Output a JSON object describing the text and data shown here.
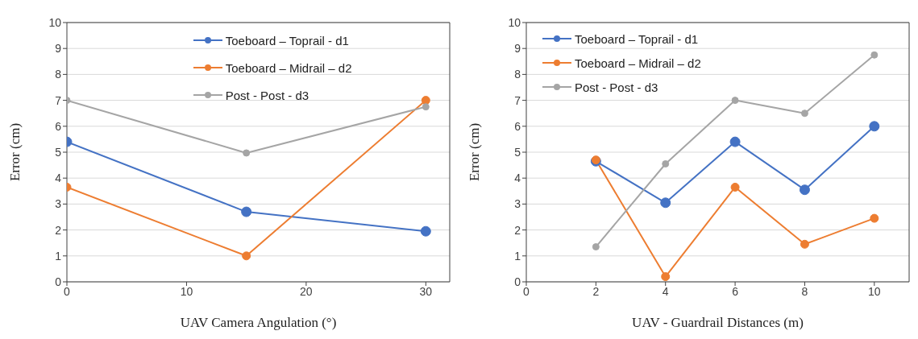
{
  "chart_data": [
    {
      "type": "line",
      "xlabel": "UAV Camera Angulation (°)",
      "ylabel": "Error (cm)",
      "x": [
        0,
        15,
        30
      ],
      "xlim": [
        0,
        32
      ],
      "xticks": [
        0,
        10,
        20,
        30
      ],
      "ylim": [
        0,
        10
      ],
      "yticks": [
        0,
        1,
        2,
        3,
        4,
        5,
        6,
        7,
        8,
        9,
        10
      ],
      "grid": "y",
      "legend": "top",
      "marker": "circle",
      "line_style": "solid",
      "series": [
        {
          "name": "Toeboard – Toprail - d1",
          "color": "#4472c4",
          "values": [
            5.4,
            2.7,
            1.95
          ]
        },
        {
          "name": "Toeboard – Midrail – d2",
          "color": "#ed7d31",
          "values": [
            3.65,
            1.0,
            7.0
          ]
        },
        {
          "name": "Post - Post - d3",
          "color": "#a5a5a5",
          "values": [
            7.0,
            4.97,
            6.75
          ]
        }
      ]
    },
    {
      "type": "line",
      "xlabel": "UAV - Guardrail Distances (m)",
      "ylabel": "Error (cm)",
      "x": [
        2,
        4,
        6,
        8,
        10
      ],
      "xlim": [
        0,
        11
      ],
      "xticks": [
        0,
        2,
        4,
        6,
        8,
        10
      ],
      "ylim": [
        0,
        10
      ],
      "yticks": [
        0,
        1,
        2,
        3,
        4,
        5,
        6,
        7,
        8,
        9,
        10
      ],
      "grid": "y",
      "legend": "top left",
      "marker": "circle",
      "line_style": "solid",
      "series": [
        {
          "name": "Toeboard – Toprail - d1",
          "color": "#4472c4",
          "values": [
            4.65,
            3.05,
            5.4,
            3.55,
            6.0
          ]
        },
        {
          "name": "Toeboard – Midrail – d2",
          "color": "#ed7d31",
          "values": [
            4.7,
            0.2,
            3.65,
            1.45,
            2.45
          ]
        },
        {
          "name": "Post - Post - d3",
          "color": "#a5a5a5",
          "values": [
            1.35,
            4.55,
            7.0,
            6.5,
            8.75
          ]
        }
      ]
    }
  ]
}
